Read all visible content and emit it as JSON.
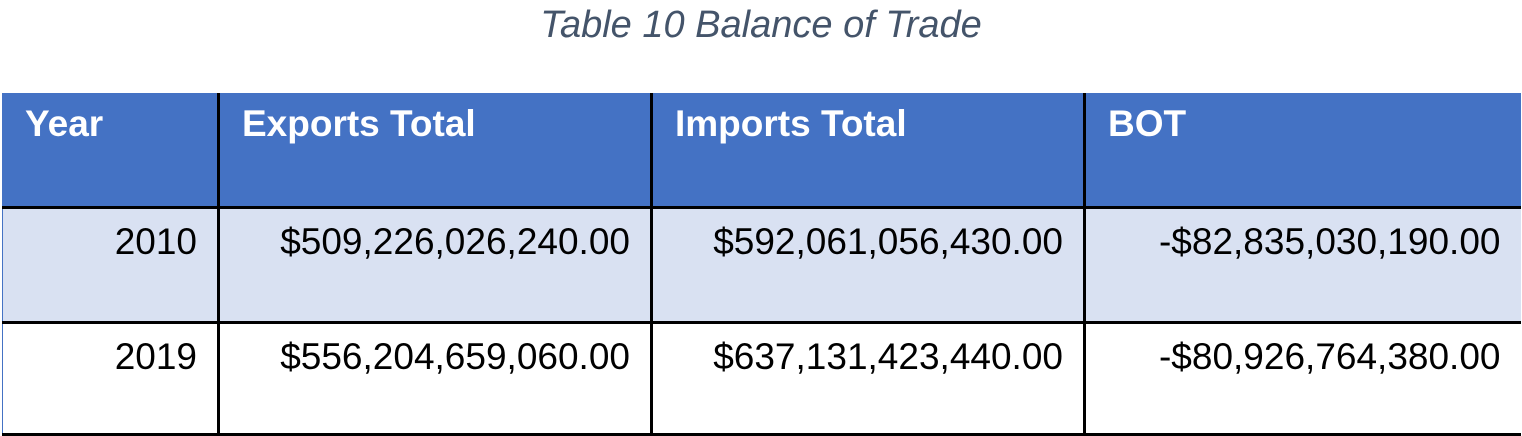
{
  "caption": "Table 10 Balance of Trade",
  "table": {
    "headers": [
      "Year",
      "Exports Total",
      "Imports Total",
      "BOT"
    ],
    "rows": [
      {
        "year": "2010",
        "exports_total": "$509,226,026,240.00",
        "imports_total": "$592,061,056,430.00",
        "bot": "-$82,835,030,190.00"
      },
      {
        "year": "2019",
        "exports_total": "$556,204,659,060.00",
        "imports_total": "$637,131,423,440.00",
        "bot": "-$80,926,764,380.00"
      }
    ]
  },
  "colors": {
    "header_background": "#4472c4",
    "header_text": "#ffffff",
    "banded_row_background": "#d9e1f2",
    "caption_text": "#44546a",
    "border": "#000000"
  }
}
